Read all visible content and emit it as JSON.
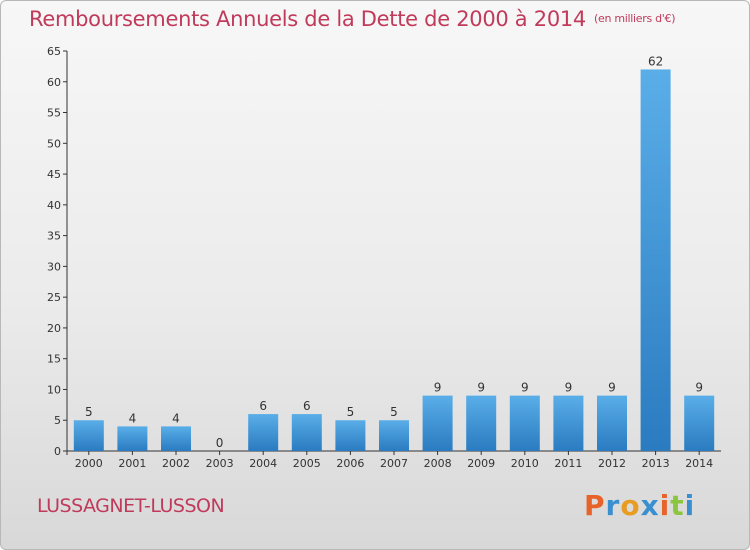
{
  "header": {
    "title": "Remboursements Annuels de la Dette de 2000 à 2014",
    "subtitle": "(en milliers d'€)"
  },
  "footer": {
    "place": "LUSSAGNET-LUSSON",
    "logo": [
      "P",
      "r",
      "o",
      "x",
      "i",
      "t",
      "i"
    ]
  },
  "colors": {
    "title": "#c03a5b",
    "bar_light": "#5aaee8",
    "bar_dark": "#2a7bc0",
    "logo": [
      "#e8632a",
      "#3a8fd0",
      "#e89c22",
      "#3a8fd0",
      "#e8632a",
      "#8cc63e",
      "#3a8fd0"
    ]
  },
  "chart_data": {
    "type": "bar",
    "title": "Remboursements Annuels de la Dette de 2000 à 2014",
    "subtitle": "(en milliers d'€)",
    "categories": [
      "2000",
      "2001",
      "2002",
      "2003",
      "2004",
      "2005",
      "2006",
      "2007",
      "2008",
      "2009",
      "2010",
      "2011",
      "2012",
      "2013",
      "2014"
    ],
    "values": [
      5,
      4,
      4,
      0,
      6,
      6,
      5,
      5,
      9,
      9,
      9,
      9,
      9,
      62,
      9
    ],
    "ylim": [
      0,
      65
    ],
    "yticks": [
      0,
      5,
      10,
      15,
      20,
      25,
      30,
      35,
      40,
      45,
      50,
      55,
      60,
      65
    ],
    "grid": false,
    "xlabel": "",
    "ylabel": ""
  }
}
